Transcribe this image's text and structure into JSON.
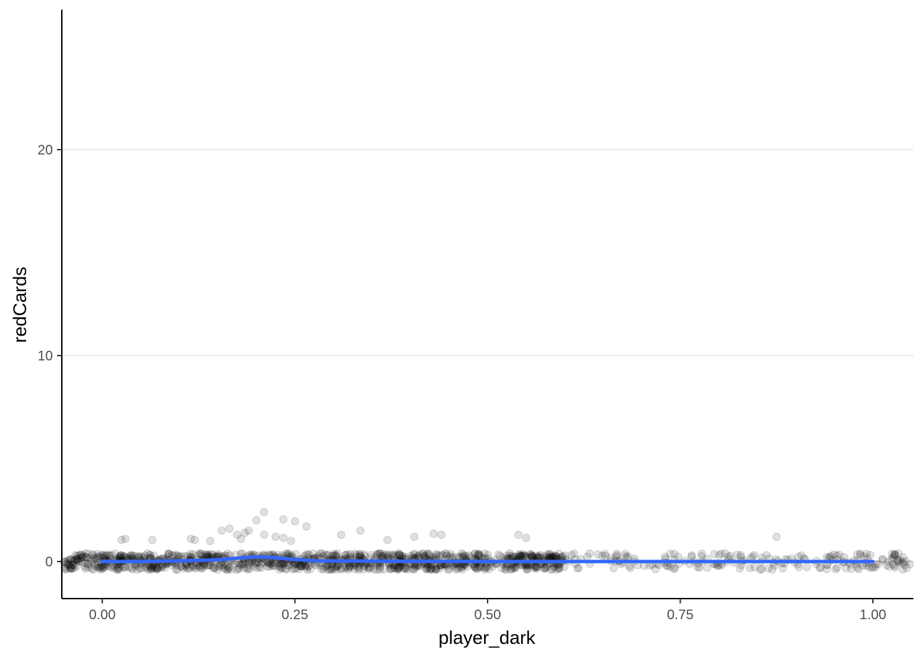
{
  "chart_data": {
    "type": "scatter",
    "xlabel": "player_dark",
    "ylabel": "redCards",
    "xlim": [
      -0.0525,
      1.0525
    ],
    "ylim": [
      -1.8,
      26.8
    ],
    "grid": "horizontal major lines only",
    "x_ticks": [
      {
        "value": 0.0,
        "label": "0.00"
      },
      {
        "value": 0.25,
        "label": "0.25"
      },
      {
        "value": 0.5,
        "label": "0.50"
      },
      {
        "value": 0.75,
        "label": "0.75"
      },
      {
        "value": 1.0,
        "label": "1.00"
      }
    ],
    "y_ticks": [
      {
        "value": 0,
        "label": "0"
      },
      {
        "value": 10,
        "label": "10"
      },
      {
        "value": 20,
        "label": "20"
      }
    ],
    "point_style": {
      "color": "#000000",
      "opacity": 0.12,
      "note": "jittered points, most at redCards 0, a few at 1-2"
    },
    "points_outliers": [
      {
        "x": 0.21,
        "y": 2.4
      },
      {
        "x": 0.2,
        "y": 2.0
      },
      {
        "x": 0.235,
        "y": 2.05
      },
      {
        "x": 0.25,
        "y": 1.95
      },
      {
        "x": 0.265,
        "y": 1.7
      },
      {
        "x": 0.165,
        "y": 1.6
      },
      {
        "x": 0.155,
        "y": 1.5
      },
      {
        "x": 0.21,
        "y": 1.3
      },
      {
        "x": 0.335,
        "y": 1.5
      },
      {
        "x": 0.31,
        "y": 1.3
      },
      {
        "x": 0.43,
        "y": 1.35
      },
      {
        "x": 0.44,
        "y": 1.3
      },
      {
        "x": 0.405,
        "y": 1.2
      },
      {
        "x": 0.54,
        "y": 1.3
      },
      {
        "x": 0.55,
        "y": 1.15
      },
      {
        "x": 0.875,
        "y": 1.2
      },
      {
        "x": 0.03,
        "y": 1.1
      },
      {
        "x": 0.025,
        "y": 1.05
      },
      {
        "x": 0.065,
        "y": 1.05
      },
      {
        "x": 0.115,
        "y": 1.1
      },
      {
        "x": 0.12,
        "y": 1.05
      },
      {
        "x": 0.14,
        "y": 1.0
      },
      {
        "x": 0.185,
        "y": 1.4
      },
      {
        "x": 0.19,
        "y": 1.5
      },
      {
        "x": 0.18,
        "y": 1.1
      },
      {
        "x": 0.235,
        "y": 1.15
      },
      {
        "x": 0.245,
        "y": 1.0
      },
      {
        "x": 0.37,
        "y": 1.05
      },
      {
        "x": 0.175,
        "y": 1.3
      },
      {
        "x": 0.225,
        "y": 1.2
      }
    ],
    "points_zero_band": {
      "y_center": 0,
      "jitter": 0.4,
      "x_ranges": [
        [
          -0.05,
          0.6
        ],
        [
          0.55,
          1.05
        ]
      ],
      "density": "dense below 0.55, sparse above"
    },
    "smooth_line": {
      "color": "#3366ff",
      "x": [
        0.0,
        0.05,
        0.1,
        0.15,
        0.18,
        0.2,
        0.22,
        0.25,
        0.28,
        0.35,
        0.5,
        0.75,
        1.0
      ],
      "y": [
        0.0,
        0.0,
        0.03,
        0.08,
        0.18,
        0.22,
        0.2,
        0.1,
        0.03,
        0.02,
        0.0,
        0.0,
        0.0
      ]
    }
  }
}
